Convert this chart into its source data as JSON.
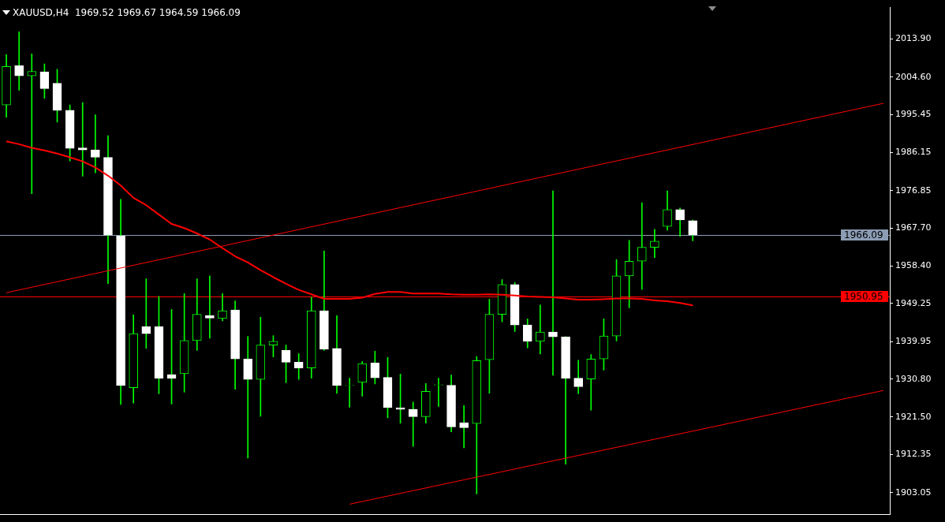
{
  "chart_data": {
    "type": "candlestick",
    "title": "XAUUSD,H4  1969.52 1969.67 1964.59 1966.09",
    "categories": [
      null,
      null,
      null,
      null,
      null,
      null,
      null,
      null,
      null,
      null,
      null,
      null,
      null,
      null,
      null,
      null,
      null,
      null,
      null,
      null,
      null,
      null,
      null,
      null,
      null,
      null,
      null,
      null,
      null,
      null,
      null,
      null,
      null,
      null,
      null,
      null,
      null,
      null,
      null,
      null,
      null,
      null,
      null,
      null,
      null,
      null,
      null,
      null,
      null,
      null,
      null,
      null,
      null,
      null,
      null,
      null,
      null,
      null,
      null,
      null,
      null,
      null,
      null,
      null,
      null,
      null,
      null,
      null,
      null,
      null
    ],
    "ohlc": [
      [
        1997.8,
        2010.1,
        1994.8,
        2007.2
      ],
      [
        2007.4,
        2015.7,
        2001.4,
        2004.9
      ],
      [
        2004.9,
        2010.3,
        1976.1,
        2006.0
      ],
      [
        2005.9,
        2007.8,
        1999.4,
        2001.8
      ],
      [
        2003.1,
        2006.5,
        1993.6,
        1996.5
      ],
      [
        1996.5,
        1997.8,
        1984.1,
        1987.2
      ],
      [
        1987.3,
        1998.4,
        1980.4,
        1986.8
      ],
      [
        1986.8,
        1995.4,
        1981.2,
        1985.0
      ],
      [
        1985.0,
        1990.3,
        1954.1,
        1966.0
      ],
      [
        1965.8,
        1974.7,
        1924.6,
        1929.2
      ],
      [
        1928.7,
        1946.5,
        1924.9,
        1941.9
      ],
      [
        1943.6,
        1955.3,
        1938.3,
        1941.9
      ],
      [
        1943.6,
        1951.0,
        1927.2,
        1931.0
      ],
      [
        1931.9,
        1947.8,
        1924.7,
        1931.0
      ],
      [
        1932.1,
        1951.7,
        1927.6,
        1940.2
      ],
      [
        1940.2,
        1955.3,
        1937.8,
        1946.6
      ],
      [
        1946.3,
        1956.0,
        1940.8,
        1945.7
      ],
      [
        1945.6,
        1951.7,
        1945.0,
        1947.5
      ],
      [
        1947.7,
        1949.9,
        1928.3,
        1935.7
      ],
      [
        1935.7,
        1941.2,
        1911.5,
        1930.7
      ],
      [
        1930.7,
        1945.9,
        1921.7,
        1939.1
      ],
      [
        1939.1,
        1941.4,
        1936.2,
        1940.0
      ],
      [
        1937.8,
        1939.1,
        1929.9,
        1934.9
      ],
      [
        1934.9,
        1937.0,
        1930.7,
        1933.5
      ],
      [
        1933.5,
        1950.8,
        1931.0,
        1947.5
      ],
      [
        1947.5,
        1962.1,
        1937.8,
        1938.1
      ],
      [
        1938.3,
        1946.3,
        1927.3,
        1929.2
      ],
      [
        1929.2,
        1931.0,
        1923.9,
        1929.3
      ],
      [
        1930.0,
        1935.1,
        1926.6,
        1934.6
      ],
      [
        1934.7,
        1937.6,
        1929.6,
        1931.1
      ],
      [
        1931.2,
        1936.1,
        1921.3,
        1923.8
      ],
      [
        1923.8,
        1932.0,
        1920.0,
        1923.4
      ],
      [
        1923.4,
        1925.2,
        1914.3,
        1921.6
      ],
      [
        1921.6,
        1929.7,
        1920.0,
        1927.8
      ],
      [
        1929.3,
        1931.0,
        1924.1,
        1929.4
      ],
      [
        1929.3,
        1931.8,
        1917.9,
        1919.1
      ],
      [
        1920.1,
        1924.3,
        1914.0,
        1918.9
      ],
      [
        1919.9,
        1936.3,
        1902.7,
        1935.3
      ],
      [
        1935.5,
        1950.3,
        1927.3,
        1946.6
      ],
      [
        1946.6,
        1955.1,
        1944.8,
        1953.9
      ],
      [
        1953.9,
        1954.4,
        1942.4,
        1944.0
      ],
      [
        1944.0,
        1945.5,
        1938.4,
        1940.0
      ],
      [
        1940.0,
        1948.9,
        1936.9,
        1942.3
      ],
      [
        1942.3,
        1976.8,
        1931.7,
        1941.1
      ],
      [
        1941.1,
        1941.2,
        1910.0,
        1931.0
      ],
      [
        1931.0,
        1935.4,
        1927.2,
        1928.9
      ],
      [
        1930.8,
        1936.8,
        1923.2,
        1935.7
      ],
      [
        1935.7,
        1945.5,
        1933.0,
        1941.3
      ],
      [
        1941.3,
        1960.0,
        1940.1,
        1956.0
      ],
      [
        1956.0,
        1964.7,
        1948.2,
        1959.6
      ],
      [
        1959.6,
        1973.9,
        1952.7,
        1963.0
      ],
      [
        1963.0,
        1967.4,
        1960.5,
        1964.5
      ],
      [
        1968.1,
        1976.8,
        1967.2,
        1972.2
      ],
      [
        1972.2,
        1972.6,
        1965.7,
        1969.7
      ],
      [
        1969.52,
        1969.67,
        1964.59,
        1966.09
      ],
      null,
      null,
      null,
      null,
      null,
      null,
      null,
      null,
      null,
      null,
      null,
      null,
      null,
      null,
      null
    ],
    "color": "#00ff00",
    "colors": [
      "#00ff00",
      "#ffffff",
      "#00ff00",
      "#ffffff",
      "#ffffff",
      "#ffffff",
      "#ffffff",
      "#ffffff",
      "#ffffff",
      "#ffffff",
      "#00ff00",
      "#ffffff",
      "#ffffff",
      "#ffffff",
      "#00ff00",
      "#00ff00",
      "#ffffff",
      "#00ff00",
      "#ffffff",
      "#ffffff",
      "#00ff00",
      "#00ff00",
      "#ffffff",
      "#ffffff",
      "#00ff00",
      "#ffffff",
      "#ffffff",
      "#00ff00",
      "#00ff00",
      "#ffffff",
      "#ffffff",
      "#ffffff",
      "#ffffff",
      "#00ff00",
      "#00ff00",
      "#ffffff",
      "#ffffff",
      "#00ff00",
      "#00ff00",
      "#00ff00",
      "#ffffff",
      "#ffffff",
      "#00ff00",
      "#ffffff",
      "#ffffff",
      "#ffffff",
      "#00ff00",
      "#00ff00",
      "#00ff00",
      "#00ff00",
      "#00ff00",
      "#00ff00",
      "#00ff00",
      "#ffffff",
      "#ffffff",
      null,
      null,
      null,
      null,
      null,
      null,
      null,
      null,
      null,
      null,
      null,
      null,
      null,
      null,
      null
    ],
    "series": [
      {
        "type": "line",
        "color": "#ff0000",
        "values": [
          1988.9,
          1988.2,
          1987.3,
          1986.7,
          1985.9,
          1985.0,
          1984.0,
          1982.5,
          1980.5,
          1978.1,
          1975.1,
          1973.3,
          1971.0,
          1968.7,
          1967.7,
          1966.4,
          1964.9,
          1962.8,
          1960.8,
          1959.3,
          1957.4,
          1955.7,
          1954.1,
          1952.6,
          1951.5,
          1950.4,
          1950.4,
          1950.4,
          1950.7,
          1951.6,
          1952.1,
          1952.1,
          1951.7,
          1951.7,
          1951.7,
          1951.5,
          1951.4,
          1951.4,
          1951.5,
          1951.4,
          1951.2,
          1951.0,
          1950.9,
          1950.8,
          1950.5,
          1950.2,
          1950.2,
          1950.3,
          1950.5,
          1950.5,
          1950.4,
          1950.0,
          1949.8,
          1949.4,
          1948.8,
          null,
          null,
          null,
          null,
          null,
          null,
          null,
          null,
          null,
          null,
          null,
          null,
          null,
          null,
          null
        ]
      },
      {
        "type": "line",
        "color": "#ff0000",
        "values": [
          1951.9,
          null,
          null,
          null,
          null,
          null,
          null,
          null,
          null,
          null,
          null,
          null,
          null,
          null,
          null,
          null,
          null,
          null,
          null,
          null,
          null,
          null,
          null,
          null,
          null,
          null,
          null,
          null,
          null,
          null,
          null,
          null,
          null,
          null,
          null,
          null,
          null,
          null,
          null,
          null,
          null,
          null,
          null,
          null,
          null,
          null,
          null,
          null,
          null,
          null,
          null,
          null,
          null,
          null,
          null,
          null,
          null,
          null,
          null,
          null,
          null,
          null,
          null,
          null,
          null,
          null,
          null,
          null,
          null,
          1998.2
        ]
      },
      {
        "type": "line",
        "color": "#ff0000",
        "values": [
          null,
          null,
          null,
          null,
          null,
          null,
          null,
          null,
          null,
          null,
          null,
          null,
          null,
          null,
          null,
          null,
          null,
          null,
          null,
          null,
          null,
          null,
          null,
          null,
          null,
          null,
          null,
          1900.2,
          null,
          null,
          null,
          null,
          null,
          null,
          null,
          null,
          null,
          null,
          null,
          null,
          null,
          null,
          null,
          null,
          null,
          null,
          null,
          null,
          null,
          null,
          null,
          null,
          null,
          null,
          null,
          null,
          null,
          null,
          null,
          null,
          null,
          null,
          null,
          null,
          null,
          null,
          null,
          null,
          null,
          1928.0
        ]
      }
    ],
    "ref_lines": [
      {
        "axis": "y",
        "value": 1966.09,
        "label": "1966.09",
        "color": "#8c9cb4"
      },
      {
        "axis": "y",
        "value": 1950.95,
        "label": "1950.95",
        "color": "#ff0000"
      }
    ],
    "ylim": [
      1897.7,
      2021.6
    ],
    "yticks": [
      {
        "value": 2013.9,
        "label": "2013.90"
      },
      {
        "value": 2004.6,
        "label": "2004.60"
      },
      {
        "value": 1995.45,
        "label": "1995.45"
      },
      {
        "value": 1986.15,
        "label": "1986.15"
      },
      {
        "value": 1976.85,
        "label": "1976.85"
      },
      {
        "value": 1967.7,
        "label": "1967.70"
      },
      {
        "value": 1958.4,
        "label": "1958.40"
      },
      {
        "value": 1949.25,
        "label": "1949.25"
      },
      {
        "value": 1939.95,
        "label": "1939.95"
      },
      {
        "value": 1930.8,
        "label": "1930.80"
      },
      {
        "value": 1921.5,
        "label": "1921.50"
      },
      {
        "value": 1912.35,
        "label": "1912.35"
      },
      {
        "value": 1903.05,
        "label": "1903.05"
      }
    ],
    "tick_labels": "y",
    "legend": false,
    "grid": false,
    "marker": "none"
  }
}
